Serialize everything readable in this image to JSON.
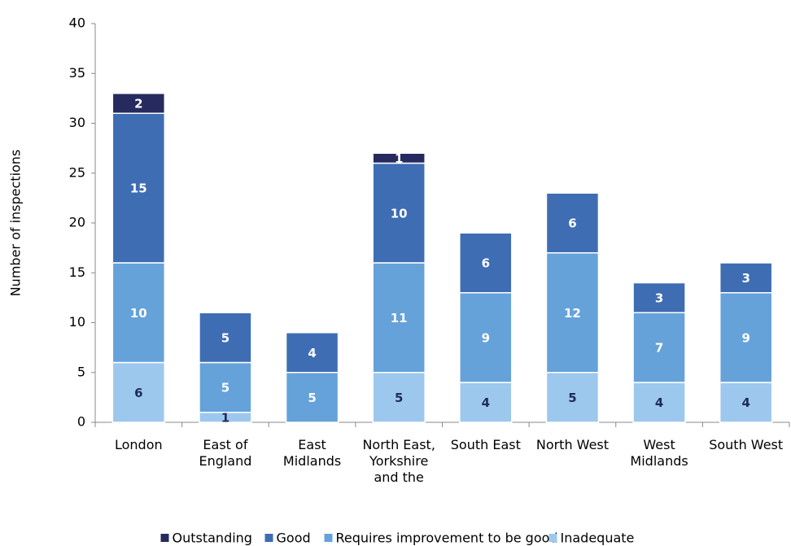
{
  "chart_data": {
    "type": "stacked_bar",
    "y_label": "Number of inspections",
    "categories": [
      "London",
      "East of England",
      "East Midlands",
      "North East, Yorkshire and the",
      "South East",
      "North West",
      "West Midlands",
      "South West"
    ],
    "series": [
      {
        "name": "Inadequate",
        "color": "#9dc8ee",
        "label_color": "#1f2a5c",
        "values": [
          6,
          1,
          null,
          5,
          4,
          5,
          4,
          4
        ]
      },
      {
        "name": "Requires improvement to be good",
        "color": "#65a2da",
        "label_color": "#ffffff",
        "values": [
          10,
          5,
          5,
          11,
          9,
          12,
          7,
          9
        ]
      },
      {
        "name": "Good",
        "color": "#3e6db3",
        "label_color": "#ffffff",
        "values": [
          15,
          5,
          4,
          10,
          6,
          6,
          3,
          3
        ]
      },
      {
        "name": "Outstanding",
        "color": "#262a5e",
        "label_color": "#ffffff",
        "values": [
          2,
          null,
          null,
          1,
          null,
          null,
          null,
          null
        ]
      }
    ],
    "legend_order": [
      3,
      2,
      1,
      0
    ],
    "ylim": [
      0,
      40
    ],
    "yticks": [
      0,
      5,
      10,
      15,
      20,
      25,
      30,
      35,
      40
    ]
  }
}
